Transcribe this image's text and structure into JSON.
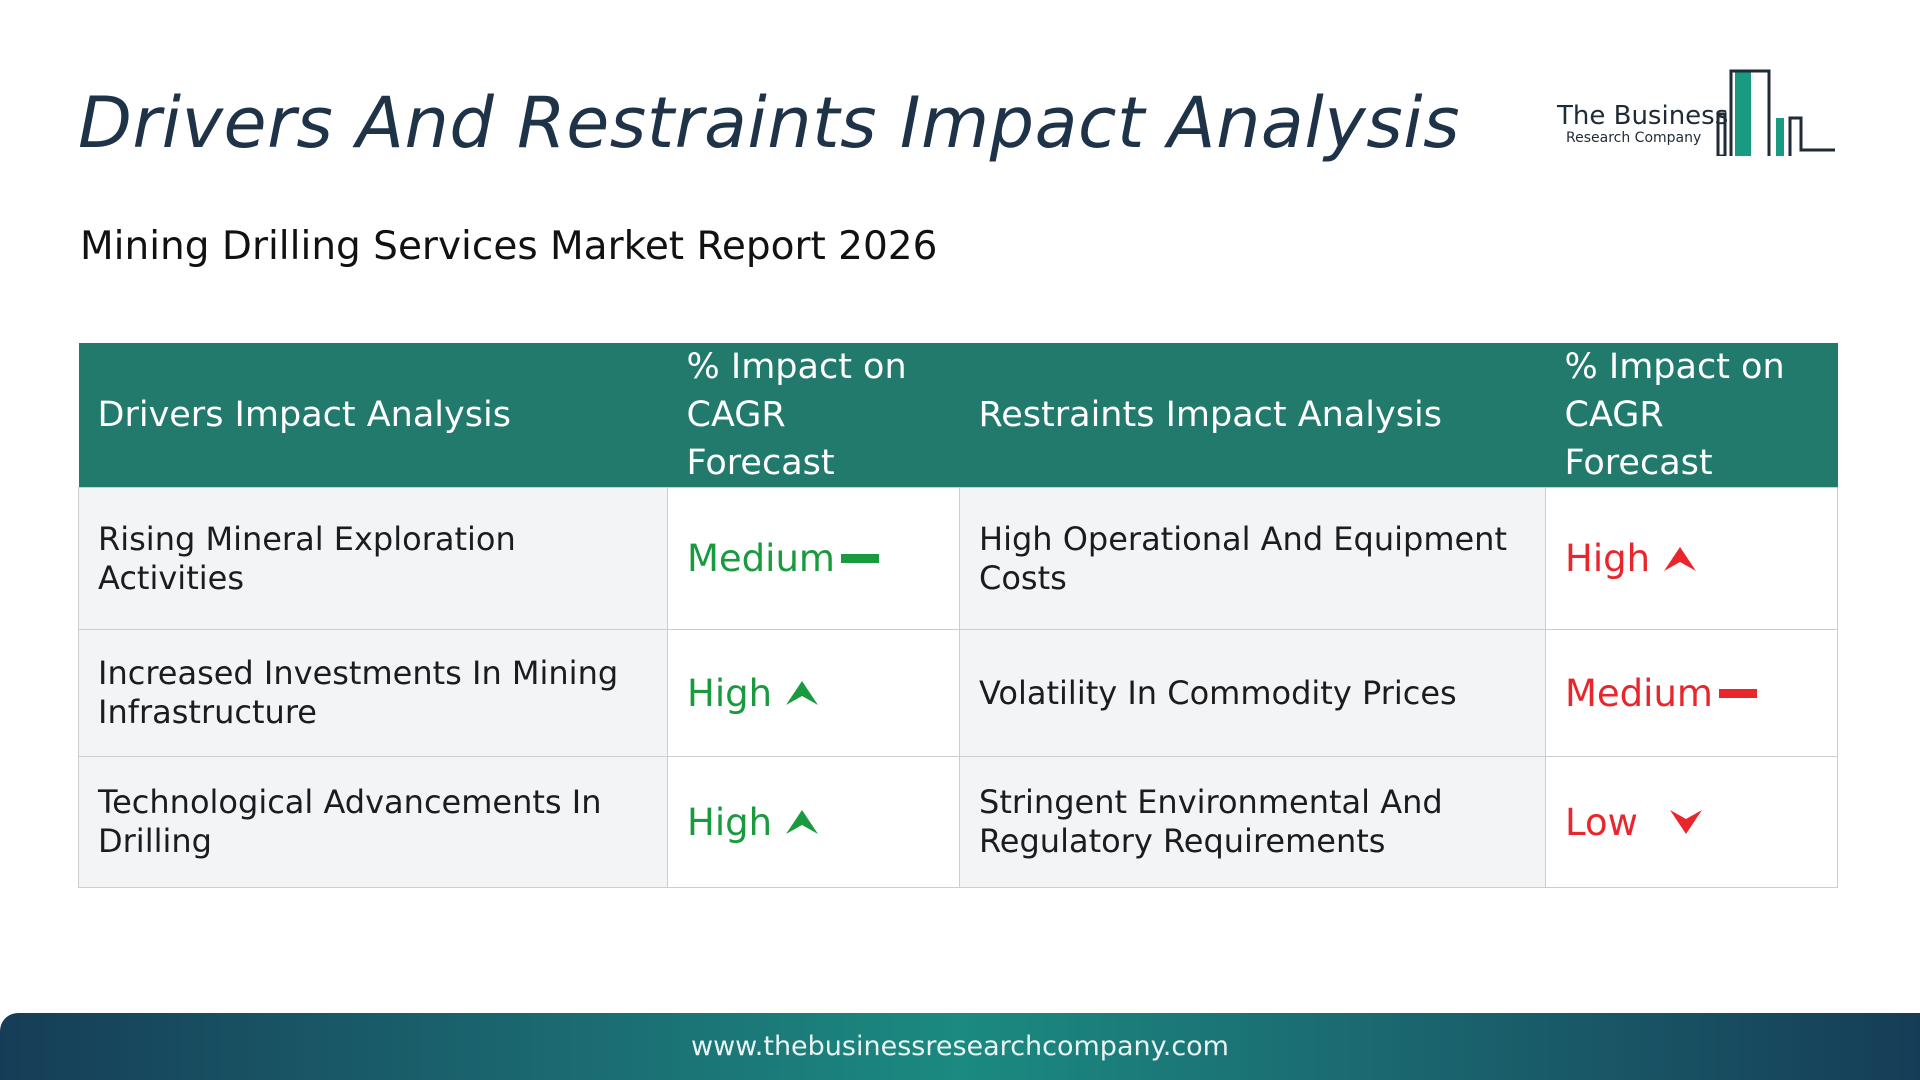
{
  "header": {
    "title": "Drivers And Restraints Impact Analysis",
    "subtitle": "Mining Drilling Services Market Report 2026"
  },
  "logo": {
    "line1": "The Business",
    "line2": "Research Company",
    "icon": "building-bars-logo"
  },
  "table": {
    "headers": {
      "drivers": "Drivers Impact Analysis",
      "drivers_impact_line1": "% Impact on",
      "drivers_impact_line2": "CAGR Forecast",
      "restraints": "Restraints Impact Analysis",
      "restraints_impact_line1": "% Impact on",
      "restraints_impact_line2": "CAGR Forecast"
    },
    "rows": [
      {
        "driver": "Rising Mineral Exploration Activities",
        "driver_level": "Medium",
        "driver_icon": "dash-icon",
        "restraint": "High Operational And Equipment Costs",
        "restraint_level": "High",
        "restraint_icon": "arrow-up-icon"
      },
      {
        "driver": "Increased Investments In Mining Infrastructure",
        "driver_level": "High",
        "driver_icon": "arrow-up-icon",
        "restraint": "Volatility In Commodity Prices",
        "restraint_level": "Medium",
        "restraint_icon": "dash-icon"
      },
      {
        "driver": "Technological Advancements In Drilling",
        "driver_level": "High",
        "driver_icon": "arrow-up-icon",
        "restraint": "Stringent Environmental And Regulatory Requirements",
        "restraint_level": "Low",
        "restraint_icon": "arrow-down-icon"
      }
    ]
  },
  "colors": {
    "header_bg": "#217a6b",
    "driver_level": "#1a9a3f",
    "restraint_level": "#e8262b",
    "title": "#1e3348"
  },
  "footer": {
    "url": "www.thebusinessresearchcompany.com"
  }
}
